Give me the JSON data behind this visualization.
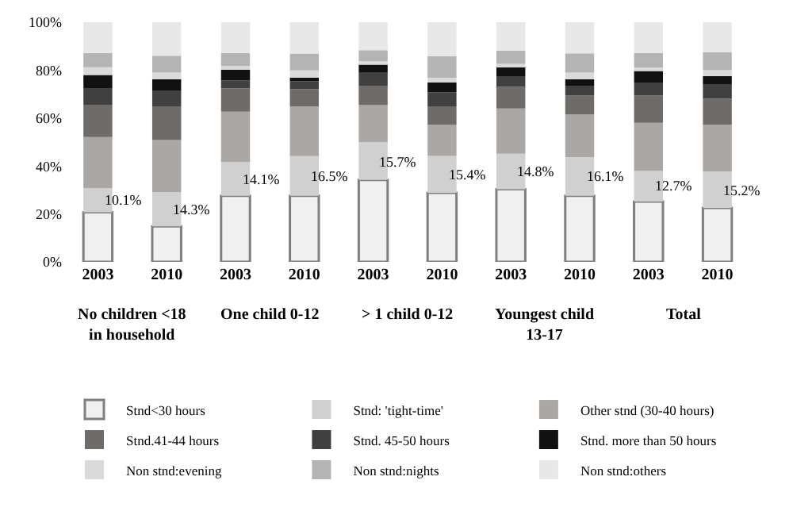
{
  "chart_data": {
    "type": "bar",
    "stacked": true,
    "categories": [
      "2003",
      "2010",
      "2003",
      "2010",
      "2003",
      "2010",
      "2003",
      "2010",
      "2003",
      "2010"
    ],
    "annotations": [
      "No children <18 in household",
      "One child 0-12",
      "> 1 child 0-12",
      "Youngest child 13-17",
      "Total"
    ],
    "series": [
      {
        "name": "Stnd<30 hours",
        "color": "#f0f0f0",
        "values": [
          20.7,
          14.8,
          27.6,
          27.6,
          34.2,
          28.8,
          30.3,
          27.6,
          25.2,
          22.5
        ]
      },
      {
        "name": "Stnd: 'tight-time'",
        "color": "#d0d0d0",
        "values": [
          10.1,
          14.3,
          14.1,
          16.5,
          15.7,
          15.4,
          14.8,
          16.1,
          12.7,
          15.2
        ],
        "value_labels": [
          "10.1%",
          "14.3%",
          "14.1%",
          "16.5%",
          "15.7%",
          "15.4%",
          "14.8%",
          "16.1%",
          "12.7%",
          "15.2%"
        ]
      },
      {
        "name": "Other stnd (30-40 hours)",
        "color": "#aba7a5",
        "values": [
          21.3,
          21.7,
          21,
          20.8,
          15.5,
          13.1,
          18.9,
          17.9,
          20.1,
          19.6
        ]
      },
      {
        "name": "Stnd.41-44 hours",
        "color": "#6f6b69",
        "values": [
          13.5,
          14.1,
          9.7,
          7.2,
          8.1,
          7.6,
          9,
          7.8,
          11.4,
          10.8
        ]
      },
      {
        "name": "Stnd. 45-50 hours",
        "color": "#404040",
        "values": [
          6.7,
          6.6,
          3.3,
          3.2,
          5.4,
          5.9,
          4.5,
          4.1,
          5.4,
          6.1
        ]
      },
      {
        "name": "Stnd. more than 50 hours",
        "color": "#111111",
        "values": [
          5.7,
          4.7,
          4.5,
          1.6,
          3.4,
          4,
          3.6,
          2.7,
          4.8,
          3.3
        ]
      },
      {
        "name": "Non stnd:evening",
        "color": "#dadada",
        "values": [
          3.2,
          2.8,
          1.5,
          3,
          1.5,
          2,
          1.5,
          2.8,
          1.5,
          2.5
        ]
      },
      {
        "name": "Non stnd:nights",
        "color": "#b4b4b4",
        "values": [
          6,
          7,
          5.5,
          7,
          4.5,
          9,
          5.5,
          8,
          6,
          7.5
        ]
      },
      {
        "name": "Non stnd:others",
        "color": "#e8e8e8",
        "values": [
          12.8,
          14,
          12.8,
          13.1,
          11.7,
          14.2,
          11.9,
          13,
          12.9,
          12.5
        ]
      }
    ],
    "ylim": [
      0,
      100
    ],
    "yticks": [
      {
        "value": 0,
        "label": "0%"
      },
      {
        "value": 20,
        "label": "20%"
      },
      {
        "value": 40,
        "label": "40%"
      },
      {
        "value": 60,
        "label": "60%"
      },
      {
        "value": 80,
        "label": "80%"
      },
      {
        "value": 100,
        "label": "100%"
      }
    ],
    "grid": false,
    "legend": "bottom"
  }
}
